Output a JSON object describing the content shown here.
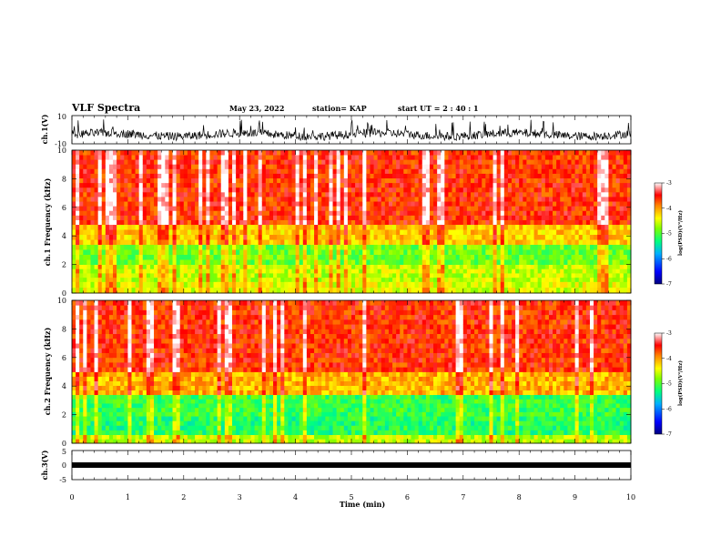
{
  "header": {
    "title": "VLF Spectra",
    "date": "May 23, 2022",
    "station": "station= KAP",
    "start_ut": "start  UT =   2 : 40 : 1"
  },
  "chart_data": [
    {
      "type": "line",
      "name_label": "ch.1(V)",
      "ylim": [
        -10,
        10
      ],
      "yticks": [
        "10",
        "-10"
      ],
      "xlim": [
        0,
        10
      ],
      "description_values": "waveform, amplitude mostly between -7 and 0 V, spikes to about +8 V"
    },
    {
      "type": "heatmap",
      "ylabel": "ch.1  Frequency  (kHz)",
      "xlim": [
        0,
        10
      ],
      "ylim": [
        0,
        10
      ],
      "yticks": [
        "0",
        "2",
        "4",
        "6",
        "8",
        "10"
      ],
      "colorbar": {
        "label": "log(PSD)(V²/Hz)",
        "range": [
          -7,
          -3
        ],
        "ticks": [
          "-3",
          "-4",
          "-5",
          "-6",
          "-7"
        ]
      },
      "bands": [
        {
          "from_khz": 0,
          "to_khz": 0.8,
          "level": -4.5
        },
        {
          "from_khz": 0.8,
          "to_khz": 2.0,
          "level": -4.6
        },
        {
          "from_khz": 2.0,
          "to_khz": 3.4,
          "level": -4.9
        },
        {
          "from_khz": 3.4,
          "to_khz": 4.8,
          "level": -4.2
        },
        {
          "from_khz": 4.8,
          "to_khz": 10,
          "level": -3.6
        }
      ]
    },
    {
      "type": "heatmap",
      "ylabel": "ch.2  Frequency  (kHz)",
      "xlim": [
        0,
        10
      ],
      "ylim": [
        0,
        10
      ],
      "yticks": [
        "0",
        "2",
        "4",
        "6",
        "8",
        "10"
      ],
      "colorbar": {
        "label": "log(PSD)(V²/Hz)",
        "range": [
          -7,
          -3
        ],
        "ticks": [
          "-3",
          "-4",
          "-5",
          "-6",
          "-7"
        ]
      },
      "bands": [
        {
          "from_khz": 0,
          "to_khz": 0.6,
          "level": -4.6
        },
        {
          "from_khz": 0.6,
          "to_khz": 1.9,
          "level": -5.2
        },
        {
          "from_khz": 1.9,
          "to_khz": 3.4,
          "level": -5.1
        },
        {
          "from_khz": 3.4,
          "to_khz": 5.0,
          "level": -4.1
        },
        {
          "from_khz": 5.0,
          "to_khz": 10,
          "level": -3.6
        }
      ]
    },
    {
      "type": "line",
      "name_label": "ch.3(V)",
      "ylim": [
        -5,
        5
      ],
      "yticks": [
        "5",
        "0",
        "-5"
      ],
      "xlim": [
        0,
        10
      ],
      "level_V": 0
    }
  ],
  "xaxis": {
    "label": "Time  (min)",
    "ticks": [
      "0",
      "1",
      "2",
      "3",
      "4",
      "5",
      "6",
      "7",
      "8",
      "9",
      "10"
    ]
  }
}
